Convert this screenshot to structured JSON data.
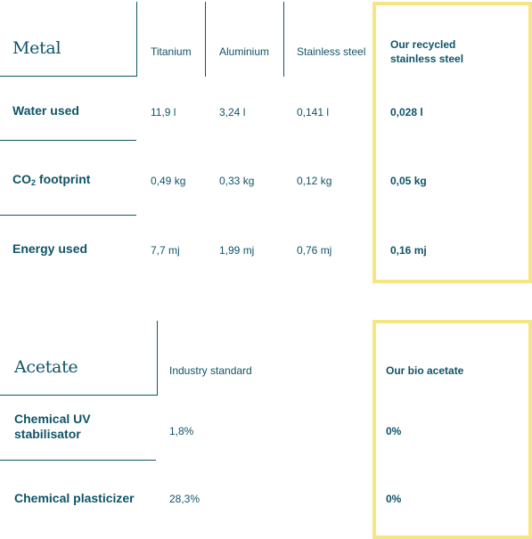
{
  "colors": {
    "text": "#0f5468",
    "highlight_border": "#f6e583",
    "background": "#ffffff"
  },
  "metal": {
    "title": "Metal",
    "columns": [
      "Titanium",
      "Aluminium",
      "Stainless steel",
      "Our recycled stainless steel"
    ],
    "rows": [
      {
        "label": "Water used",
        "values": [
          "11,9 l",
          "3,24 l",
          "0,141 l",
          "0,028 l"
        ]
      },
      {
        "label_main": "CO",
        "label_sub": "2",
        "label_rest": " footprint",
        "values": [
          "0,49 kg",
          "0,33 kg",
          "0,12 kg",
          "0,05 kg"
        ]
      },
      {
        "label": "Energy used",
        "values": [
          "7,7 mj",
          "1,99 mj",
          "0,76 mj",
          "0,16 mj"
        ]
      }
    ]
  },
  "acetate": {
    "title": "Acetate",
    "columns": [
      "Industry standard",
      "Our bio acetate"
    ],
    "rows": [
      {
        "label": "Chemical UV stabilisator",
        "values": [
          "1,8%",
          "0%"
        ]
      },
      {
        "label": "Chemical plasticizer",
        "values": [
          "28,3%",
          "0%"
        ]
      }
    ]
  }
}
